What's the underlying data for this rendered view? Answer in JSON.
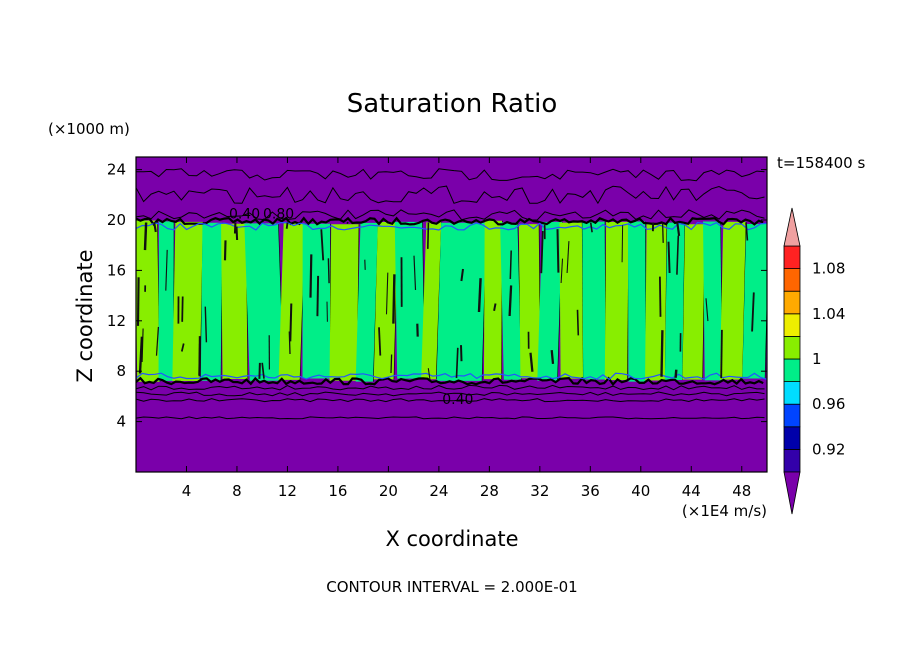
{
  "chart_data": {
    "type": "heatmap",
    "title": "Saturation Ratio",
    "xlabel": "X coordinate",
    "ylabel": "Z coordinate",
    "x_unit": "(×1E4 m/s)",
    "y_unit": "(×1000 m)",
    "time_label": "t=158400 s",
    "footer": "CONTOUR INTERVAL = 2.000E-01",
    "xlim": [
      0,
      50
    ],
    "ylim": [
      0,
      25
    ],
    "x_ticks": [
      4,
      8,
      12,
      16,
      20,
      24,
      28,
      32,
      36,
      40,
      44,
      48
    ],
    "x_tick_labels": [
      "4",
      "8",
      "12",
      "16",
      "20",
      "24",
      "28",
      "32",
      "36",
      "40",
      "44",
      "48"
    ],
    "y_ticks": [
      4,
      8,
      12,
      16,
      20,
      24
    ],
    "y_tick_labels": [
      "4",
      "8",
      "12",
      "16",
      "20",
      "24"
    ],
    "colorbar": {
      "levels": [
        0.9,
        0.92,
        0.94,
        0.96,
        0.98,
        1.0,
        1.02,
        1.04,
        1.06,
        1.08,
        1.1
      ],
      "colors": [
        "#3300aa",
        "#0000aa",
        "#0044ff",
        "#00ddff",
        "#00ee88",
        "#88ee00",
        "#eeee00",
        "#ffaa00",
        "#ff6600",
        "#ff2222"
      ],
      "under_color": "#7a00aa",
      "over_color": "#f0a0a0",
      "labels": [
        "0.92",
        "0.96",
        "1",
        "1.04",
        "1.08"
      ],
      "label_values": [
        0.92,
        0.96,
        1.0,
        1.04,
        1.08
      ]
    },
    "layers": {
      "cloud_base_z": 7.3,
      "cloud_top_z": 19.8,
      "subsaturated_color": "#7a00aa",
      "cloud_band_colors": [
        "#88ee00",
        "#00ee88"
      ]
    },
    "columns": [
      {
        "x0": 0,
        "x1": 1.8,
        "c": 0
      },
      {
        "x0": 1.8,
        "x1": 3.0,
        "c": 1
      },
      {
        "x0": 3.0,
        "x1": 5.2,
        "c": 0
      },
      {
        "x0": 5.2,
        "x1": 6.8,
        "c": 1
      },
      {
        "x0": 6.8,
        "x1": 8.8,
        "c": 0
      },
      {
        "x0": 8.8,
        "x1": 11.5,
        "c": 1
      },
      {
        "x0": 11.5,
        "x1": 13.2,
        "c": 0
      },
      {
        "x0": 13.2,
        "x1": 15.4,
        "c": 1
      },
      {
        "x0": 15.4,
        "x1": 17.6,
        "c": 0
      },
      {
        "x0": 17.6,
        "x1": 19.0,
        "c": 1
      },
      {
        "x0": 19.0,
        "x1": 20.6,
        "c": 0
      },
      {
        "x0": 20.6,
        "x1": 22.8,
        "c": 1
      },
      {
        "x0": 22.8,
        "x1": 24.0,
        "c": 0
      },
      {
        "x0": 24.0,
        "x1": 27.6,
        "c": 1
      },
      {
        "x0": 27.6,
        "x1": 29.0,
        "c": 0
      },
      {
        "x0": 29.0,
        "x1": 30.4,
        "c": 1
      },
      {
        "x0": 30.4,
        "x1": 32.0,
        "c": 0
      },
      {
        "x0": 32.0,
        "x1": 33.6,
        "c": 1
      },
      {
        "x0": 33.6,
        "x1": 35.4,
        "c": 0
      },
      {
        "x0": 35.4,
        "x1": 37.2,
        "c": 1
      },
      {
        "x0": 37.2,
        "x1": 39.0,
        "c": 0
      },
      {
        "x0": 39.0,
        "x1": 40.4,
        "c": 1
      },
      {
        "x0": 40.4,
        "x1": 42.0,
        "c": 0
      },
      {
        "x0": 42.0,
        "x1": 43.4,
        "c": 1
      },
      {
        "x0": 43.4,
        "x1": 45.0,
        "c": 0
      },
      {
        "x0": 45.0,
        "x1": 46.4,
        "c": 1
      },
      {
        "x0": 46.4,
        "x1": 48.2,
        "c": 0
      },
      {
        "x0": 48.2,
        "x1": 50,
        "c": 1
      }
    ],
    "contour_lines": [
      {
        "z": 4.3,
        "amp": 0.08
      },
      {
        "z": 5.7,
        "amp": 0.12
      },
      {
        "z": 6.2,
        "amp": 0.15
      },
      {
        "z": 6.7,
        "amp": 0.18
      },
      {
        "z": 20.4,
        "amp": 0.4
      },
      {
        "z": 22.0,
        "amp": 0.7
      },
      {
        "z": 23.6,
        "amp": 0.5
      }
    ],
    "contour_labels": [
      {
        "text": "0.40",
        "x": 25.5,
        "z": 5.8
      },
      {
        "text": "0.40",
        "x": 8.6,
        "z": 20.5
      },
      {
        "text": "0.80",
        "x": 11.3,
        "z": 20.5
      }
    ]
  }
}
